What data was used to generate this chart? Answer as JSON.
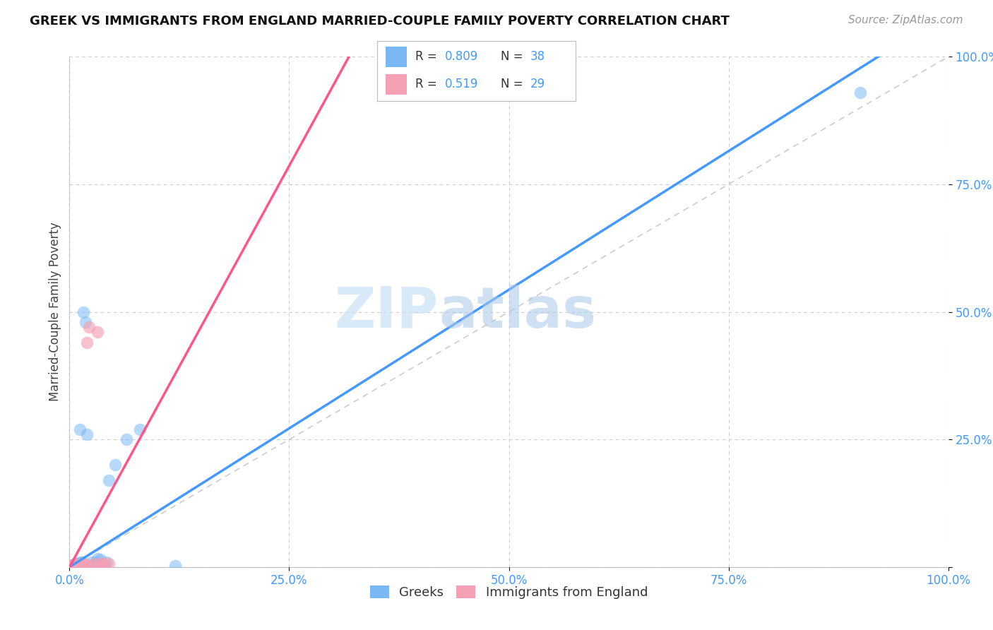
{
  "title": "GREEK VS IMMIGRANTS FROM ENGLAND MARRIED-COUPLE FAMILY POVERTY CORRELATION CHART",
  "source": "Source: ZipAtlas.com",
  "ylabel": "Married-Couple Family Poverty",
  "xlim": [
    0.0,
    1.0
  ],
  "ylim": [
    0.0,
    1.0
  ],
  "xtick_vals": [
    0.0,
    0.25,
    0.5,
    0.75,
    1.0
  ],
  "xticklabels": [
    "0.0%",
    "25.0%",
    "50.0%",
    "75.0%",
    "100.0%"
  ],
  "ytick_vals": [
    0.0,
    0.25,
    0.5,
    0.75,
    1.0
  ],
  "yticklabels": [
    "",
    "25.0%",
    "50.0%",
    "75.0%",
    "100.0%"
  ],
  "greek_color": "#7ab8f5",
  "england_color": "#f4a0b5",
  "greek_R": 0.809,
  "greek_N": 38,
  "england_R": 0.519,
  "england_N": 29,
  "greek_line_color": "#4499ff",
  "england_line_color": "#ff5588",
  "ref_line_color": "#cccccc",
  "tick_color": "#4499ff",
  "watermark_zip": "ZIP",
  "watermark_atlas": "atlas",
  "title_fontsize": 13,
  "source_fontsize": 11,
  "tick_fontsize": 12,
  "ylabel_fontsize": 12,
  "background": "#ffffff",
  "greek_x": [
    0.0,
    0.001,
    0.001,
    0.002,
    0.002,
    0.003,
    0.003,
    0.004,
    0.004,
    0.005,
    0.005,
    0.006,
    0.006,
    0.007,
    0.007,
    0.008,
    0.008,
    0.009,
    0.01,
    0.01,
    0.011,
    0.012,
    0.013,
    0.015,
    0.016,
    0.018,
    0.02,
    0.025,
    0.03,
    0.032,
    0.035,
    0.042,
    0.045,
    0.052,
    0.065,
    0.08,
    0.9,
    0.12
  ],
  "greek_y": [
    0.0,
    0.001,
    0.002,
    0.001,
    0.003,
    0.002,
    0.004,
    0.002,
    0.003,
    0.003,
    0.005,
    0.003,
    0.005,
    0.004,
    0.006,
    0.003,
    0.006,
    0.005,
    0.004,
    0.007,
    0.008,
    0.27,
    0.01,
    0.01,
    0.5,
    0.48,
    0.26,
    0.01,
    0.01,
    0.016,
    0.015,
    0.01,
    0.17,
    0.2,
    0.25,
    0.27,
    0.93,
    0.003
  ],
  "england_x": [
    0.0,
    0.001,
    0.002,
    0.003,
    0.003,
    0.004,
    0.005,
    0.005,
    0.006,
    0.007,
    0.008,
    0.008,
    0.009,
    0.01,
    0.011,
    0.012,
    0.013,
    0.015,
    0.016,
    0.018,
    0.02,
    0.022,
    0.025,
    0.028,
    0.032,
    0.035,
    0.038,
    0.04,
    0.045
  ],
  "england_y": [
    0.001,
    0.001,
    0.002,
    0.001,
    0.003,
    0.002,
    0.003,
    0.004,
    0.002,
    0.003,
    0.004,
    0.005,
    0.004,
    0.003,
    0.005,
    0.004,
    0.005,
    0.004,
    0.005,
    0.005,
    0.44,
    0.47,
    0.003,
    0.006,
    0.46,
    0.006,
    0.006,
    0.005,
    0.006
  ]
}
